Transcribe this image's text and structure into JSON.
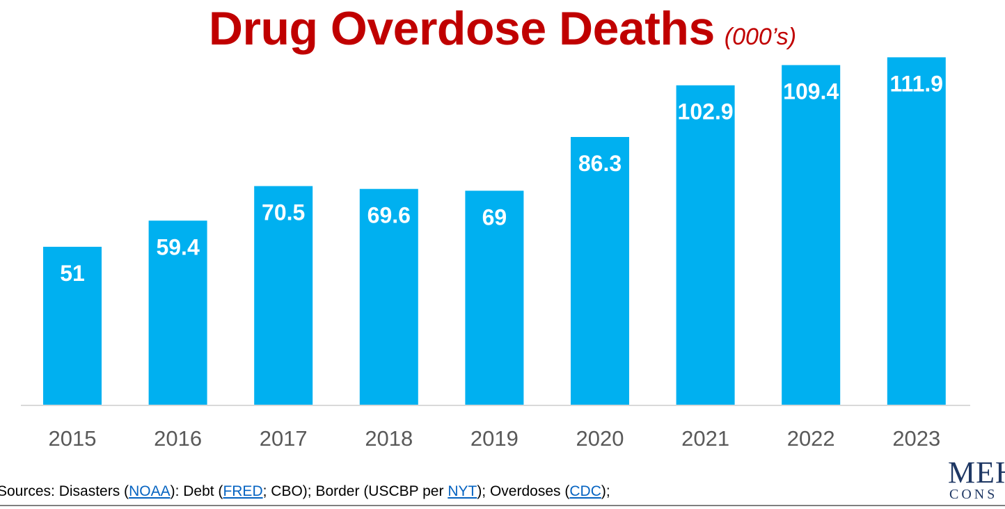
{
  "chart_data": {
    "type": "bar",
    "title": "Drug Overdose Deaths",
    "subtitle": "(000’s)",
    "categories": [
      "2015",
      "2016",
      "2017",
      "2018",
      "2019",
      "2020",
      "2021",
      "2022",
      "2023"
    ],
    "values": [
      51,
      59.4,
      70.5,
      69.6,
      69,
      86.3,
      102.9,
      109.4,
      111.9
    ],
    "data_labels": [
      "51",
      "59.4",
      "70.5",
      "69.6",
      "69",
      "86.3",
      "102.9",
      "109.4",
      "111.9"
    ],
    "xlabel": "",
    "ylabel": "",
    "ylim": [
      0,
      112
    ],
    "grid": false,
    "bar_color": "#00b0f0",
    "title_color": "#c00000"
  },
  "footer": {
    "sources_prefix": "Sources: Disasters (",
    "link_noaa": "NOAA",
    "text_2": "): Debt (",
    "link_fred": "FRED",
    "text_3": "; CBO); Border (USCBP per ",
    "link_nyt": "NYT",
    "text_4": "); Overdoses (",
    "link_cdc": "CDC",
    "text_5": ");"
  },
  "logo": {
    "main": "MEH",
    "sub": "CONS"
  }
}
